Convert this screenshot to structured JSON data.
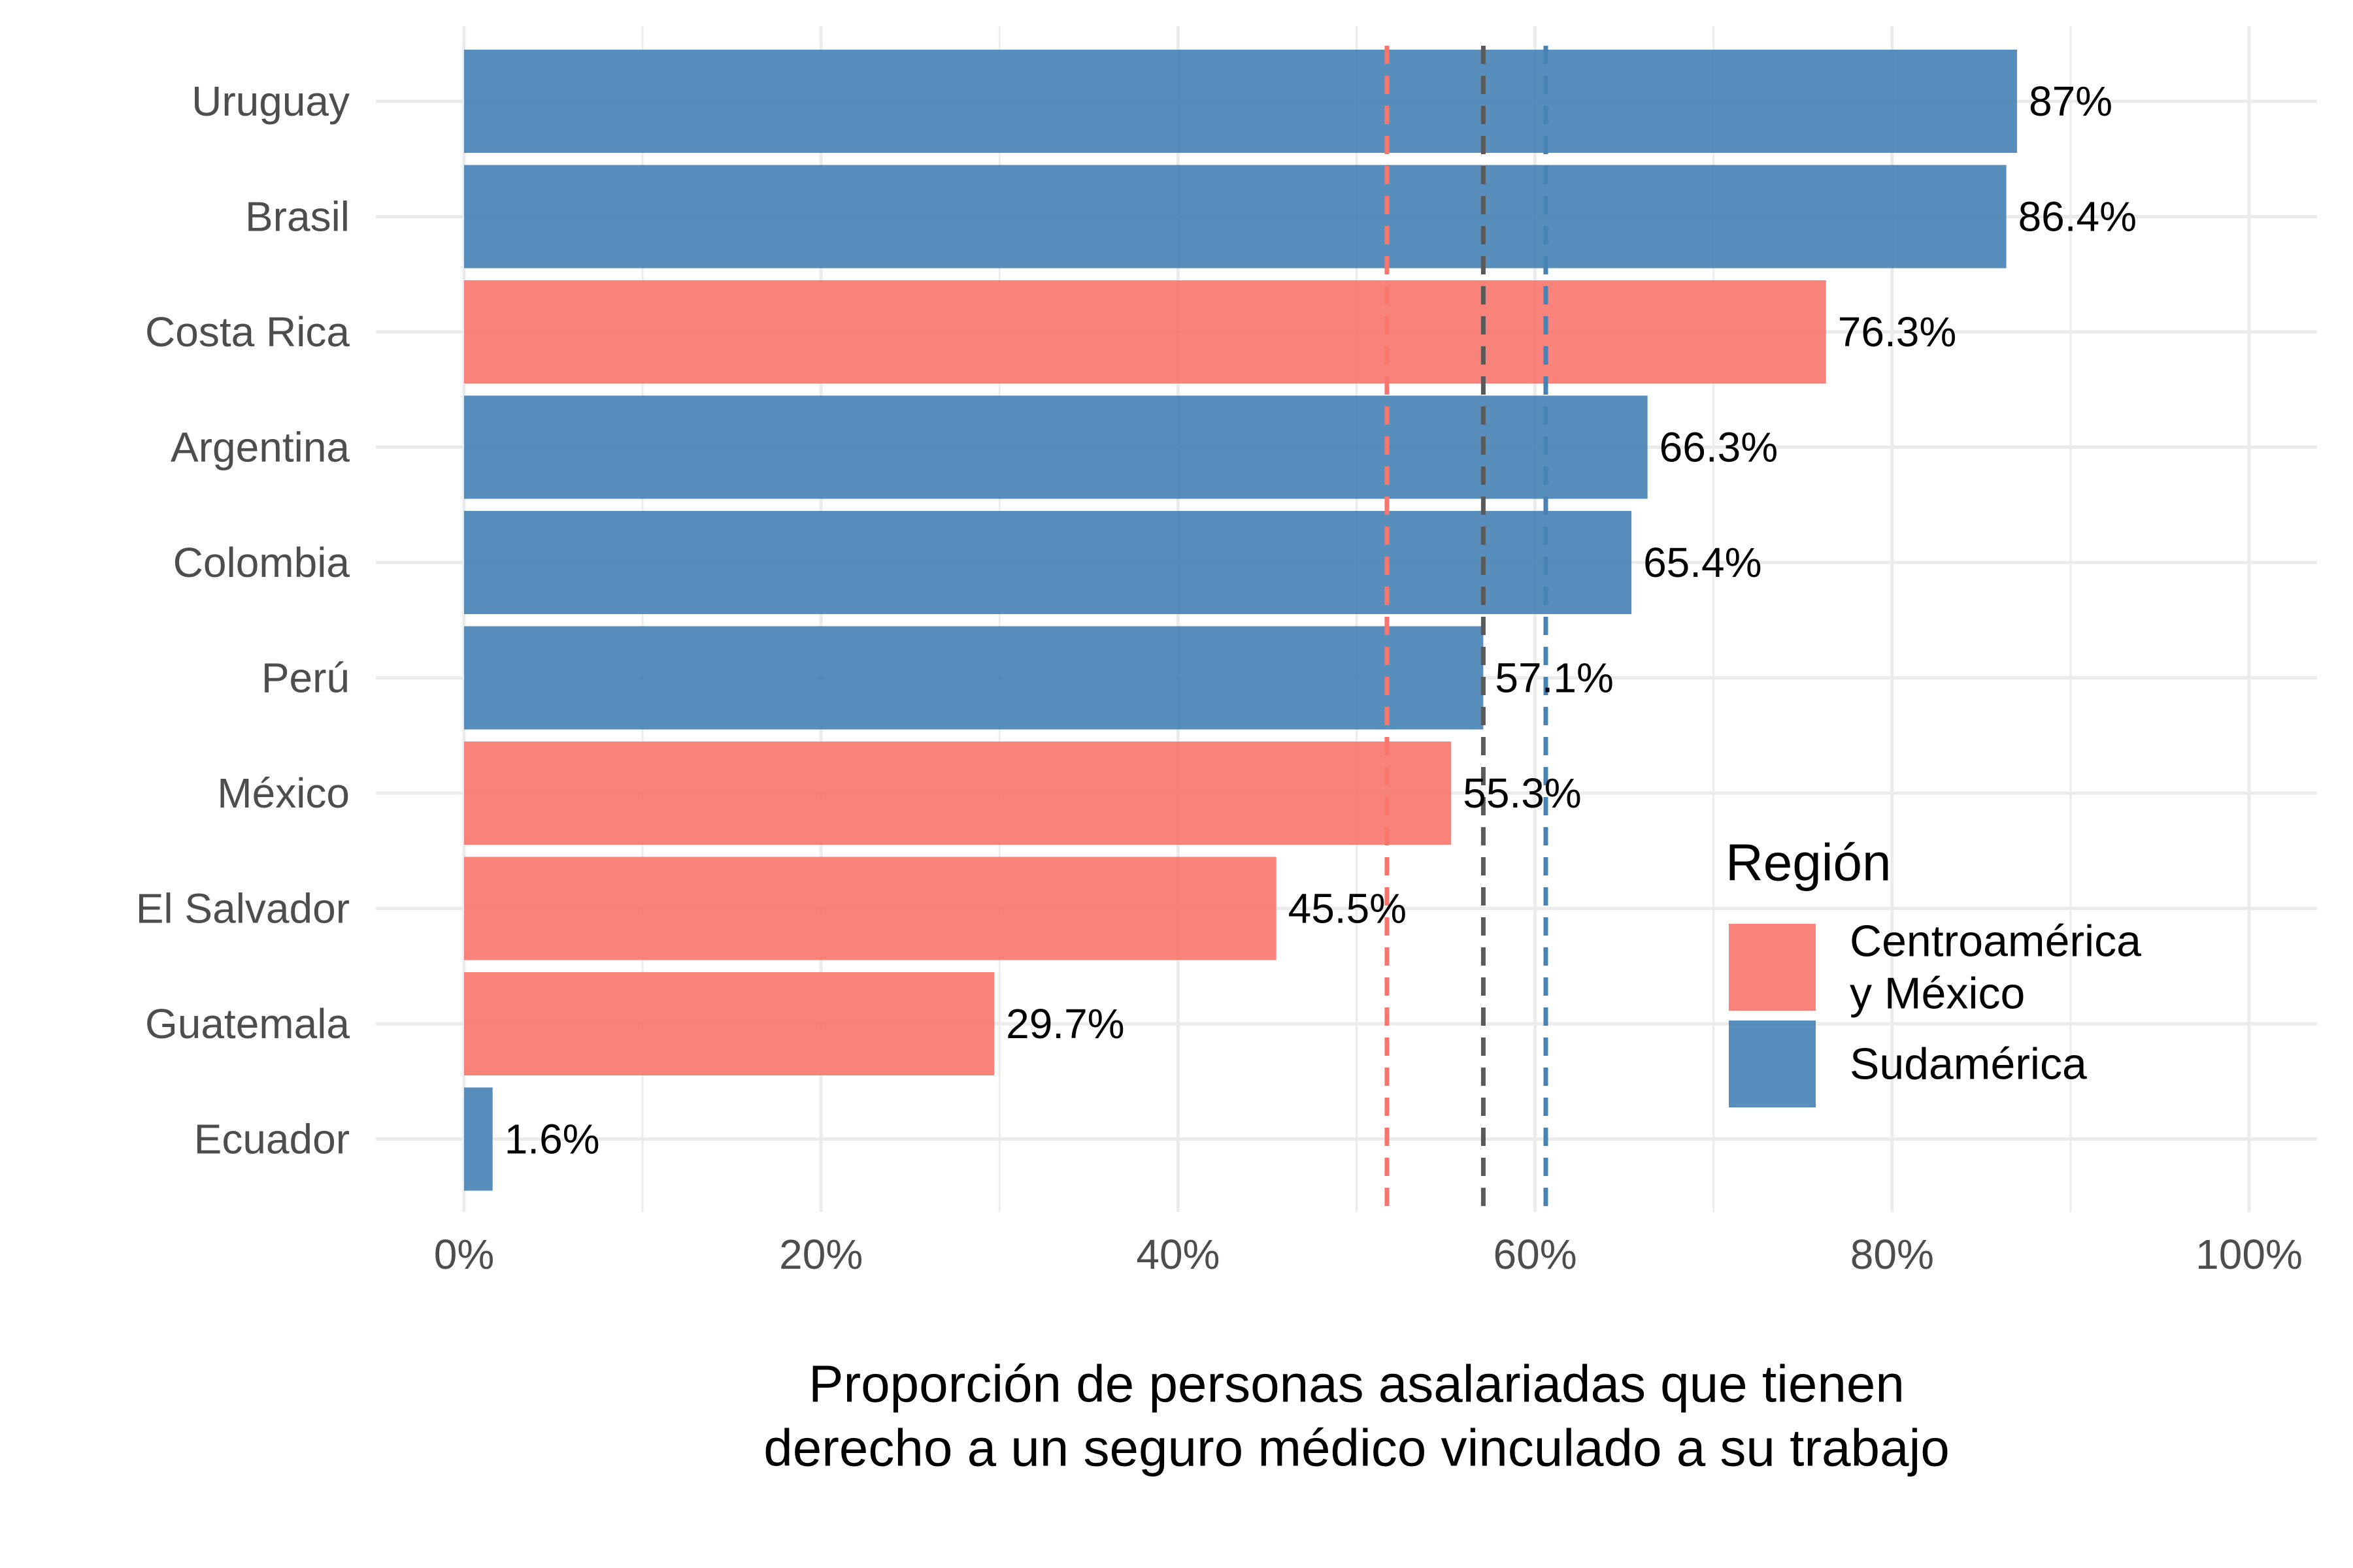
{
  "chart_data": {
    "type": "bar",
    "orientation": "horizontal",
    "categories": [
      "Uruguay",
      "Brasil",
      "Costa Rica",
      "Argentina",
      "Colombia",
      "Perú",
      "México",
      "El Salvador",
      "Guatemala",
      "Ecuador"
    ],
    "values": [
      87,
      86.4,
      76.3,
      66.3,
      65.4,
      57.1,
      55.3,
      45.5,
      29.7,
      1.6
    ],
    "value_labels": [
      "87%",
      "86.4%",
      "76.3%",
      "66.3%",
      "65.4%",
      "57.1%",
      "55.3%",
      "45.5%",
      "29.7%",
      "1.6%"
    ],
    "regions": [
      "Sudamérica",
      "Sudamérica",
      "Centroamérica y México",
      "Sudamérica",
      "Sudamérica",
      "Sudamérica",
      "Centroamérica y México",
      "Centroamérica y México",
      "Centroamérica y México",
      "Sudamérica"
    ],
    "reference_lines": [
      {
        "region": "Centroamérica y México",
        "value": 51.7,
        "color": "#F8766D"
      },
      {
        "region": "all",
        "value": 57.1,
        "color": "#595959"
      },
      {
        "region": "Sudamérica",
        "value": 60.6,
        "color": "#4682B4"
      }
    ],
    "xlim": [
      0,
      100
    ],
    "xticks": [
      0,
      20,
      40,
      60,
      80,
      100
    ],
    "xtick_labels": [
      "0%",
      "20%",
      "40%",
      "60%",
      "80%",
      "100%"
    ],
    "xlabel": "Proporción de personas asalariadas que tienen derecho a un seguro médico vinculado a su trabajo",
    "xlabel_lines": [
      "Proporción de personas asalariadas que tienen",
      "derecho a un seguro médico vinculado a su trabajo"
    ],
    "ylabel": "",
    "grid": true,
    "legend": {
      "title": "Región",
      "placement": "inside-right",
      "items": [
        {
          "label_lines": [
            "Centroamérica",
            "y México"
          ],
          "region": "Centroamérica y México",
          "color": "#F8766D"
        },
        {
          "label_lines": [
            "Sudamérica"
          ],
          "region": "Sudamérica",
          "color": "#4682B4"
        }
      ]
    },
    "colors": {
      "Centroamérica y México": "#F8766D",
      "Sudamérica": "#4682B4"
    }
  }
}
